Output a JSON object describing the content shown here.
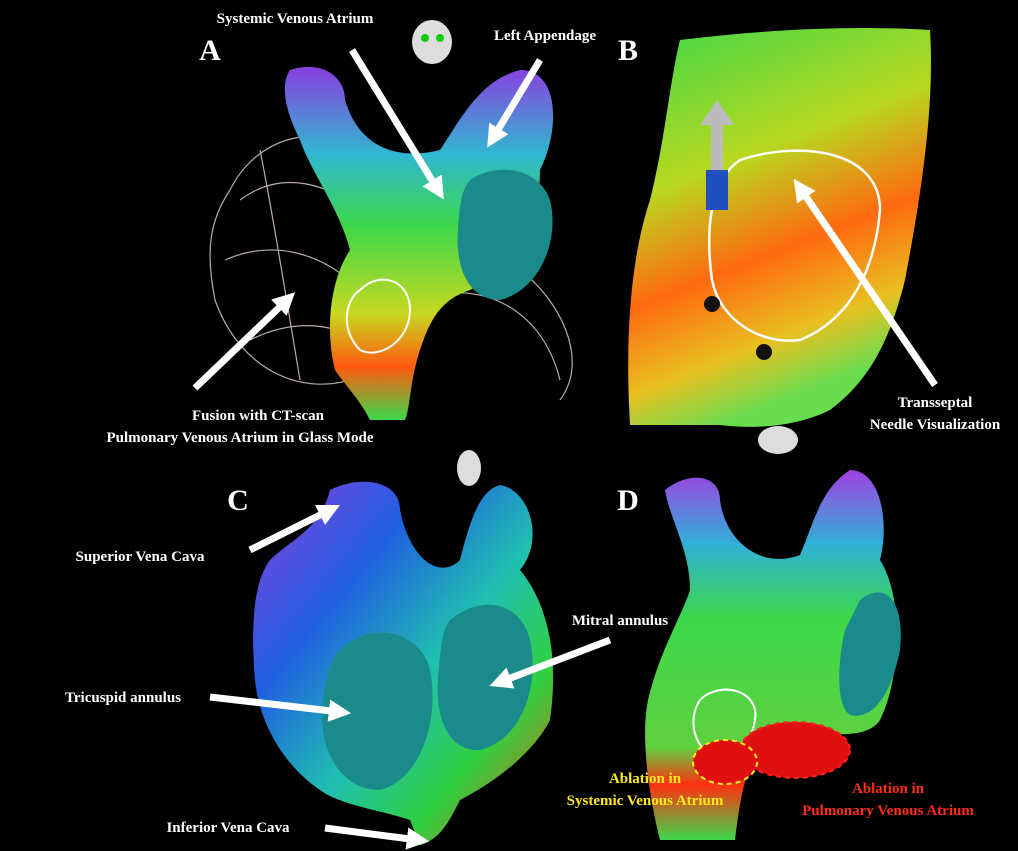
{
  "panels": [
    {
      "letter": "A",
      "annotations": [
        {
          "lines": [
            "Systemic Venous Atrium"
          ]
        },
        {
          "lines": [
            "Left Appendage"
          ]
        },
        {
          "lines": [
            "Fusion with CT-scan",
            "Pulmonary Venous Atrium in Glass Mode"
          ]
        }
      ]
    },
    {
      "letter": "B",
      "annotations": [
        {
          "lines": [
            "Transseptal",
            "Needle Visualization"
          ]
        }
      ]
    },
    {
      "letter": "C",
      "annotations": [
        {
          "lines": [
            "Superior Vena Cava"
          ]
        },
        {
          "lines": [
            "Mitral annulus"
          ]
        },
        {
          "lines": [
            "Tricuspid annulus"
          ]
        },
        {
          "lines": [
            "Inferior Vena Cava"
          ]
        }
      ]
    },
    {
      "letter": "D",
      "annotations": [
        {
          "lines": [
            "Ablation in",
            "Systemic Venous Atrium"
          ]
        },
        {
          "lines": [
            "Ablation in",
            "Pulmonary Venous Atrium"
          ]
        }
      ]
    }
  ]
}
